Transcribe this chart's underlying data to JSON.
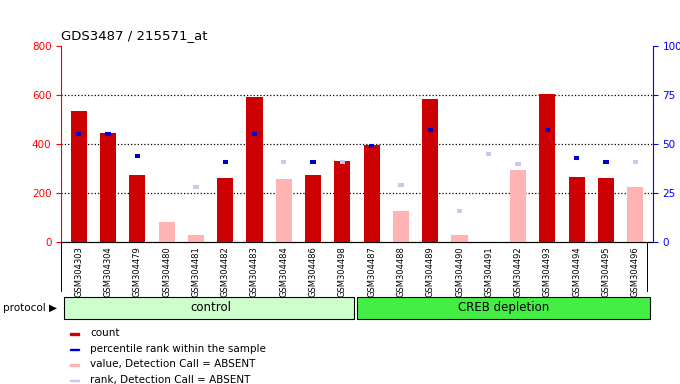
{
  "title": "GDS3487 / 215571_at",
  "samples": [
    "GSM304303",
    "GSM304304",
    "GSM304479",
    "GSM304480",
    "GSM304481",
    "GSM304482",
    "GSM304483",
    "GSM304484",
    "GSM304486",
    "GSM304498",
    "GSM304487",
    "GSM304488",
    "GSM304489",
    "GSM304490",
    "GSM304491",
    "GSM304492",
    "GSM304493",
    "GSM304494",
    "GSM304495",
    "GSM304496"
  ],
  "count": [
    535,
    445,
    272,
    0,
    0,
    262,
    590,
    0,
    275,
    330,
    395,
    0,
    585,
    0,
    0,
    0,
    605,
    265,
    260,
    0
  ],
  "rank": [
    55,
    55,
    44,
    0,
    0,
    41,
    55,
    0,
    41,
    0,
    49,
    0,
    57,
    0,
    0,
    0,
    57,
    43,
    41,
    0
  ],
  "absent_value": [
    0,
    0,
    0,
    80,
    28,
    0,
    0,
    258,
    0,
    0,
    0,
    125,
    0,
    30,
    0,
    295,
    0,
    0,
    0,
    225
  ],
  "absent_rank_val": [
    0,
    0,
    0,
    0,
    28,
    0,
    0,
    41,
    0,
    41,
    0,
    29,
    0,
    16,
    45,
    40,
    0,
    0,
    0,
    41
  ],
  "control_count": 10,
  "total_count": 20,
  "control_label": "control",
  "treatment_label": "CREB depletion",
  "protocol_label": "protocol",
  "ylim_left": [
    0,
    800
  ],
  "ylim_right": [
    0,
    100
  ],
  "yticks_left": [
    0,
    200,
    400,
    600,
    800
  ],
  "yticks_right": [
    0,
    25,
    50,
    75,
    100
  ],
  "color_count": "#cc0000",
  "color_rank": "#0000cc",
  "color_absent_value": "#ffb3b3",
  "color_absent_rank": "#c8c8e8",
  "bg_color": "#ffffff",
  "plot_bg": "#ffffff",
  "control_bg": "#ccffcc",
  "treatment_bg": "#44ee44",
  "legend_items": [
    {
      "color": "#cc0000",
      "label": "count"
    },
    {
      "color": "#0000cc",
      "label": "percentile rank within the sample"
    },
    {
      "color": "#ffb3b3",
      "label": "value, Detection Call = ABSENT"
    },
    {
      "color": "#c8c8e8",
      "label": "rank, Detection Call = ABSENT"
    }
  ]
}
